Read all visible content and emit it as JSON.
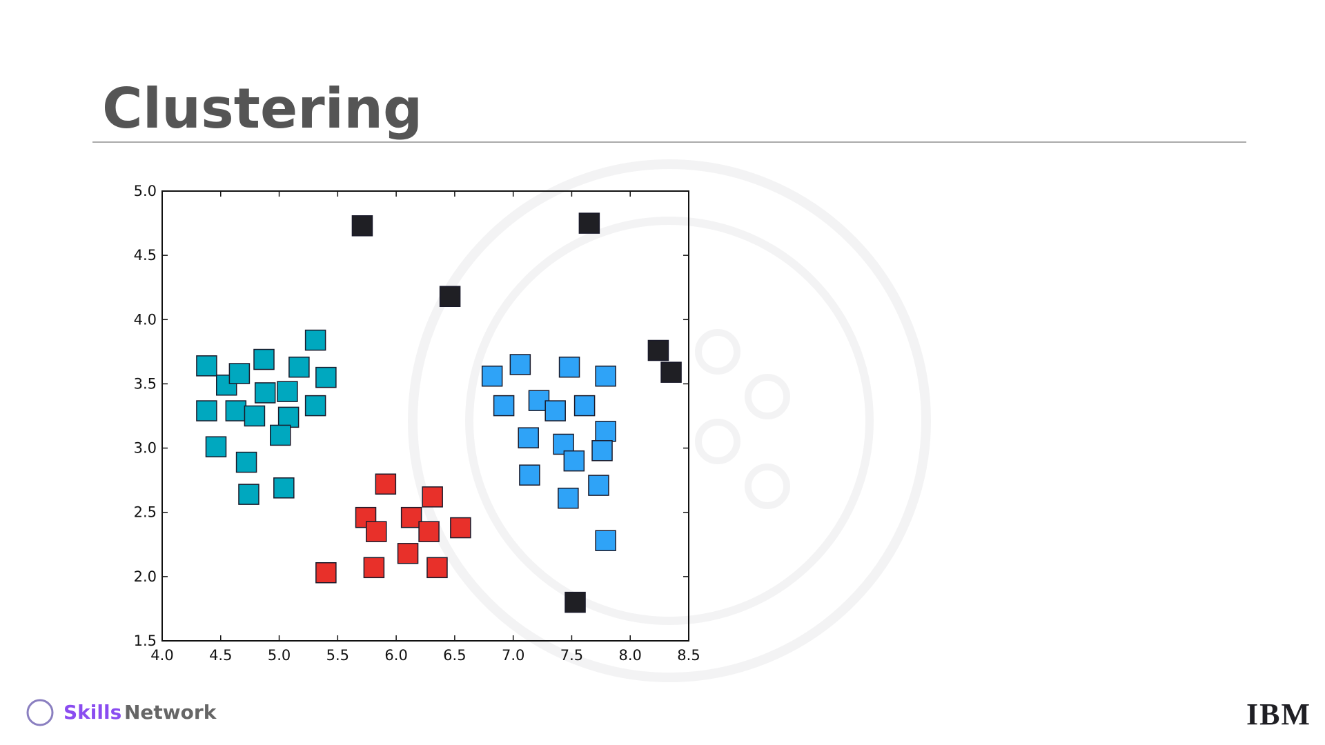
{
  "slide": {
    "title": "Clustering",
    "brand_bold": "Skills",
    "brand_rest": "Network",
    "logo": "IBM"
  },
  "chart_data": {
    "type": "scatter",
    "xlim": [
      4.0,
      8.5
    ],
    "xticks": [
      {
        "value": 4,
        "label": "4.0"
      },
      4.5,
      {
        "value": 5,
        "label": "5.0"
      },
      5.5,
      {
        "value": 6,
        "label": "6.0"
      },
      6.5,
      {
        "value": 7,
        "label": "7.0"
      },
      7.5,
      {
        "value": 8,
        "label": "8.0"
      },
      8.5
    ],
    "ylim": [
      1.5,
      5.0
    ],
    "yticks": [
      1.5,
      {
        "value": 2,
        "label": "2.0"
      },
      2.5,
      {
        "value": 3,
        "label": "3.0"
      },
      3.5,
      {
        "value": 4,
        "label": "4.0"
      },
      4.5,
      {
        "value": 5,
        "label": "5.0"
      }
    ],
    "grid": false,
    "marker": "square",
    "series": [
      {
        "color": "#00a8bf",
        "x": [
          4.38,
          4.55,
          4.66,
          4.87,
          5.17,
          5.31,
          5.4,
          4.38,
          4.63,
          4.79,
          4.88,
          5.07,
          5.08,
          5.31,
          5.01,
          4.46,
          4.72,
          4.74,
          5.04
        ],
        "values": [
          3.64,
          3.49,
          3.58,
          3.69,
          3.63,
          3.84,
          3.55,
          3.29,
          3.29,
          3.25,
          3.43,
          3.44,
          3.24,
          3.33,
          3.1,
          3.01,
          2.89,
          2.64,
          2.69
        ]
      },
      {
        "color": "#e8302a",
        "x": [
          5.91,
          6.31,
          5.74,
          5.83,
          6.13,
          6.28,
          6.55,
          6.1,
          5.81,
          6.35,
          5.4
        ],
        "values": [
          2.72,
          2.62,
          2.46,
          2.35,
          2.46,
          2.35,
          2.38,
          2.18,
          2.07,
          2.07,
          2.03
        ]
      },
      {
        "color": "#2fa3f7",
        "x": [
          6.82,
          7.06,
          7.48,
          7.79,
          6.92,
          7.22,
          7.36,
          7.61,
          7.79,
          7.13,
          7.43,
          7.76,
          7.52,
          7.14,
          7.73,
          7.47,
          7.79
        ],
        "values": [
          3.56,
          3.65,
          3.63,
          3.56,
          3.33,
          3.37,
          3.29,
          3.33,
          3.13,
          3.08,
          3.03,
          2.98,
          2.9,
          2.79,
          2.71,
          2.61,
          2.28
        ]
      },
      {
        "color": "#1f1f24",
        "x": [
          5.71,
          7.65,
          6.46,
          8.24,
          8.35,
          7.53
        ],
        "values": [
          4.73,
          4.75,
          4.18,
          3.76,
          3.59,
          1.8
        ]
      }
    ]
  }
}
